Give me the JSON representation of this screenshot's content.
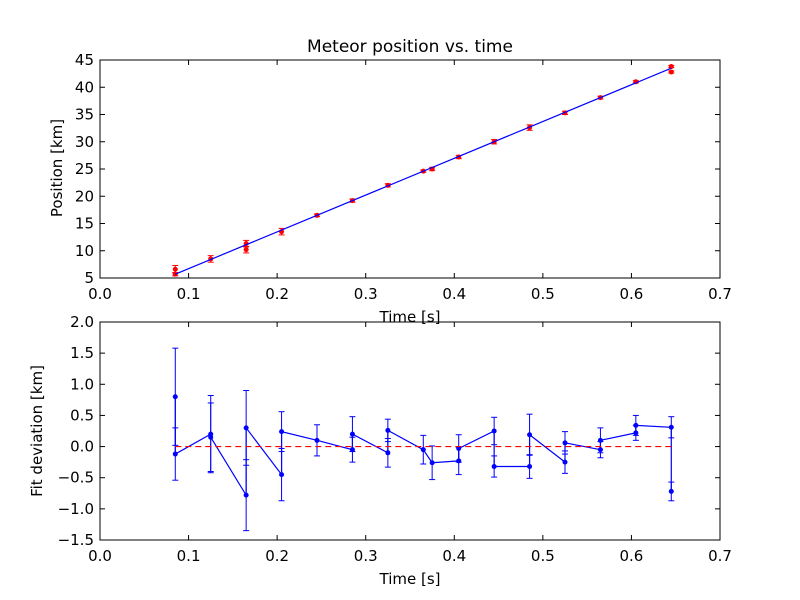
{
  "chart_data": [
    {
      "type": "scatter",
      "title": "Meteor position vs. time",
      "xlabel": "Time [s]",
      "ylabel": "Position [km]",
      "xlim": [
        0.0,
        0.7
      ],
      "ylim": [
        5,
        45
      ],
      "xticks": [
        "0.0",
        "0.1",
        "0.2",
        "0.3",
        "0.4",
        "0.5",
        "0.6",
        "0.7"
      ],
      "yticks": [
        "5",
        "10",
        "15",
        "20",
        "25",
        "30",
        "35",
        "40",
        "45"
      ],
      "grid": false,
      "colors": {
        "points": "#ff0000",
        "fit": "#0000ff"
      },
      "series": [
        {
          "kind": "points-with-errorbars",
          "x": [
            0.085,
            0.085,
            0.125,
            0.165,
            0.165,
            0.205,
            0.245,
            0.285,
            0.325,
            0.365,
            0.375,
            0.405,
            0.445,
            0.485,
            0.525,
            0.565,
            0.605,
            0.645,
            0.645
          ],
          "y": [
            6.6,
            5.7,
            8.5,
            11.3,
            10.2,
            13.5,
            16.5,
            19.2,
            22.0,
            24.6,
            25.0,
            27.2,
            30.0,
            32.6,
            35.3,
            38.1,
            41.0,
            43.8,
            42.8
          ],
          "yerr": [
            0.7,
            0.3,
            0.6,
            0.6,
            0.6,
            0.6,
            0.25,
            0.3,
            0.3,
            0.2,
            0.3,
            0.3,
            0.4,
            0.5,
            0.3,
            0.25,
            0.2,
            0.2,
            0.2
          ]
        },
        {
          "kind": "fit-line",
          "x": [
            0.085,
            0.645
          ],
          "y": [
            5.7,
            43.5
          ]
        }
      ]
    },
    {
      "type": "line",
      "title": "",
      "xlabel": "Time [s]",
      "ylabel": "Fit deviation [km]",
      "xlim": [
        0.0,
        0.7
      ],
      "ylim": [
        -1.5,
        2.0
      ],
      "xticks": [
        "0.0",
        "0.1",
        "0.2",
        "0.3",
        "0.4",
        "0.5",
        "0.6",
        "0.7"
      ],
      "yticks": [
        "−1.5",
        "−1.0",
        "−0.5",
        "0.0",
        "0.5",
        "1.0",
        "1.5",
        "2.0"
      ],
      "grid": false,
      "colors": {
        "deviation": "#0000ff",
        "zero": "#ff0000"
      },
      "series": [
        {
          "kind": "deviation-with-errorbars",
          "x": [
            0.085,
            0.085,
            0.125,
            0.125,
            0.165,
            0.165,
            0.205,
            0.205,
            0.245,
            0.285,
            0.285,
            0.325,
            0.325,
            0.365,
            0.375,
            0.405,
            0.405,
            0.445,
            0.445,
            0.485,
            0.485,
            0.525,
            0.525,
            0.565,
            0.565,
            0.605,
            0.605,
            0.645,
            0.645
          ],
          "y": [
            0.8,
            -0.12,
            0.2,
            0.15,
            -0.78,
            0.3,
            -0.45,
            0.24,
            0.1,
            -0.05,
            0.2,
            -0.1,
            0.26,
            -0.05,
            -0.26,
            -0.23,
            -0.03,
            0.25,
            -0.32,
            -0.32,
            0.19,
            -0.25,
            0.06,
            -0.05,
            0.1,
            0.22,
            0.34,
            0.31,
            -0.72
          ],
          "yerr": [
            0.78,
            0.42,
            0.62,
            0.55,
            0.57,
            0.6,
            0.42,
            0.32,
            0.25,
            0.2,
            0.28,
            0.23,
            0.18,
            0.23,
            0.27,
            0.22,
            0.22,
            0.22,
            0.17,
            0.19,
            0.33,
            0.18,
            0.18,
            0.13,
            0.2,
            0.12,
            0.16,
            0.17,
            0.15
          ]
        },
        {
          "kind": "zero-line",
          "x": [
            0.085,
            0.645
          ],
          "y": [
            0.0,
            0.0
          ]
        }
      ]
    }
  ]
}
